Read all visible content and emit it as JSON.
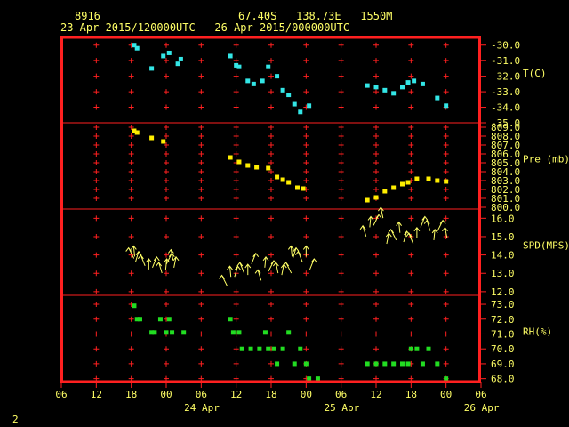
{
  "header": {
    "station_id": "8916",
    "location": "67.40S   138.73E   1550M",
    "period": "23 Apr 2015/120000UTC - 26 Apr 2015/000000UTC"
  },
  "footer": {
    "page_number": "2"
  },
  "colors": {
    "frame": "#ff2020",
    "text": "#ffff66",
    "temperature": "#33e6e6",
    "pressure": "#ffee00",
    "wind": "#ffff66",
    "humidity": "#22dd22"
  },
  "chart_data": [
    {
      "type": "scatter",
      "name": "temperature",
      "ylabel": "T(C)",
      "ylim": [
        -35.0,
        -29.5
      ],
      "yticks": [
        "-30.0",
        "-31.0",
        "-32.0",
        "-33.0",
        "-34.0",
        "-35.0"
      ],
      "x": [
        12.5,
        13.0,
        15.5,
        17.5,
        18.5,
        20.0,
        20.5,
        29.0,
        30.0,
        30.5,
        32.0,
        33.0,
        34.5,
        35.5,
        37.0,
        38.0,
        39.0,
        40.0,
        41.0,
        42.5,
        52.5,
        54.0,
        55.5,
        57.0,
        58.5,
        59.5,
        60.5,
        62.0,
        64.5,
        66.0
      ],
      "y": [
        -30.0,
        -30.2,
        -31.5,
        -30.7,
        -30.5,
        -31.2,
        -30.9,
        -30.7,
        -31.3,
        -31.4,
        -32.3,
        -32.5,
        -32.3,
        -31.4,
        -32.0,
        -32.9,
        -33.2,
        -33.8,
        -34.3,
        -33.9,
        -32.6,
        -32.7,
        -32.9,
        -33.1,
        -32.7,
        -32.4,
        -32.3,
        -32.5,
        -33.4,
        -33.9
      ]
    },
    {
      "type": "scatter",
      "name": "pressure",
      "ylabel": "Pre (mb)",
      "ylim": [
        799.8,
        809.5
      ],
      "yticks": [
        "809.0",
        "808.0",
        "807.0",
        "806.0",
        "805.0",
        "804.0",
        "803.0",
        "802.0",
        "801.0",
        "800.0"
      ],
      "x": [
        12.5,
        13.0,
        15.5,
        17.5,
        29.0,
        30.5,
        32.0,
        33.5,
        35.5,
        37.0,
        38.0,
        39.0,
        40.5,
        41.5,
        52.5,
        54.0,
        55.5,
        57.0,
        58.5,
        59.5,
        61.0,
        63.0,
        64.5,
        66.0
      ],
      "y": [
        808.6,
        808.4,
        807.8,
        807.4,
        805.6,
        805.1,
        804.7,
        804.5,
        804.4,
        803.4,
        803.1,
        802.8,
        802.2,
        802.1,
        800.8,
        801.1,
        801.8,
        802.2,
        802.6,
        802.8,
        803.2,
        803.2,
        803.0,
        802.9
      ]
    },
    {
      "type": "scatter",
      "name": "wind",
      "ylabel": "SPD(MPS)",
      "ylim": [
        11.8,
        16.5
      ],
      "yticks": [
        "16.0",
        "15.0",
        "14.0",
        "13.0",
        "12.0"
      ],
      "x": [
        12.0,
        12.5,
        13.0,
        14.0,
        15.0,
        16.0,
        17.0,
        18.0,
        18.5,
        19.0,
        19.5,
        28.0,
        29.0,
        30.0,
        31.0,
        32.0,
        33.0,
        34.0,
        35.0,
        36.0,
        37.0,
        38.0,
        39.0,
        39.5,
        40.0,
        41.0,
        42.0,
        43.0,
        52.0,
        53.0,
        54.0,
        55.0,
        56.0,
        57.0,
        58.0,
        59.0,
        60.0,
        61.0,
        62.0,
        63.0,
        64.0,
        65.0,
        66.0
      ],
      "y": [
        14.1,
        14.2,
        13.9,
        13.7,
        13.5,
        13.6,
        13.3,
        13.5,
        13.8,
        14.0,
        13.6,
        12.6,
        13.1,
        13.1,
        13.3,
        13.2,
        13.8,
        12.9,
        13.6,
        13.4,
        13.3,
        13.2,
        13.3,
        14.2,
        14.1,
        13.9,
        14.2,
        13.5,
        15.3,
        15.8,
        15.9,
        16.3,
        14.9,
        15.1,
        15.5,
        15.0,
        14.9,
        15.2,
        15.8,
        15.6,
        15.1,
        15.6,
        15.2
      ]
    },
    {
      "type": "scatter",
      "name": "humidity",
      "ylabel": "RH(%)",
      "ylim": [
        67.8,
        73.6
      ],
      "yticks": [
        "73.0",
        "72.0",
        "71.0",
        "70.0",
        "69.0",
        "68.0"
      ],
      "x": [
        12.5,
        13.0,
        13.5,
        15.5,
        16.0,
        17.0,
        18.0,
        18.5,
        19.0,
        21.0,
        29.0,
        29.5,
        30.5,
        31.0,
        32.5,
        34.0,
        35.0,
        35.5,
        36.5,
        37.0,
        38.0,
        39.0,
        40.0,
        41.0,
        42.0,
        42.5,
        44.0,
        52.5,
        54.0,
        55.5,
        57.0,
        58.5,
        59.5,
        60.0,
        61.0,
        62.0,
        63.0,
        64.5,
        66.0
      ],
      "y": [
        72.9,
        72.0,
        72.0,
        71.1,
        71.1,
        72.0,
        71.1,
        72.0,
        71.1,
        71.1,
        72.0,
        71.1,
        71.1,
        70.0,
        70.0,
        70.0,
        71.1,
        70.0,
        70.0,
        69.0,
        70.0,
        71.1,
        69.0,
        70.0,
        69.0,
        68.0,
        68.0,
        69.0,
        69.0,
        69.0,
        69.0,
        69.0,
        69.0,
        70.0,
        70.0,
        69.0,
        70.0,
        69.0,
        68.0
      ]
    }
  ],
  "x_axis": {
    "range_hours": [
      0,
      72
    ],
    "tick_labels": [
      "06",
      "12",
      "18",
      "00",
      "06",
      "12",
      "18",
      "00",
      "06",
      "12",
      "18",
      "00",
      "06"
    ],
    "date_labels": [
      "24 Apr",
      "25 Apr",
      "26 Apr"
    ]
  }
}
